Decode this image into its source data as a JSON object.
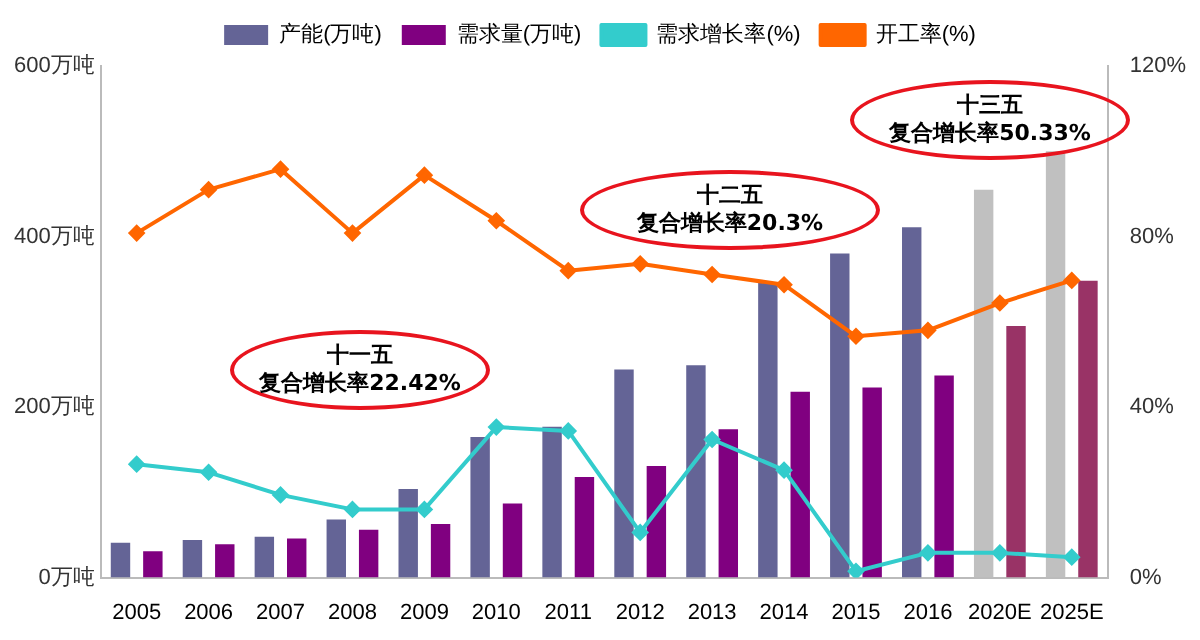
{
  "chart_data": {
    "type": "bar",
    "categories": [
      "2005",
      "2006",
      "2007",
      "2008",
      "2009",
      "2010",
      "2011",
      "2012",
      "2013",
      "2014",
      "2015",
      "2016",
      "2020E",
      "2025E"
    ],
    "series": [
      {
        "name": "产能(万吨)",
        "color": "#646496",
        "colors": [
          "#646496",
          "#646496",
          "#646496",
          "#646496",
          "#646496",
          "#646496",
          "#646496",
          "#646496",
          "#646496",
          "#646496",
          "#646496",
          "#646496",
          "#c0c0c0",
          "#c0c0c0"
        ],
        "values": [
          41,
          44,
          48,
          68,
          104,
          165,
          177,
          244,
          249,
          346,
          380,
          411,
          455,
          500
        ]
      },
      {
        "name": "需求量(万吨)",
        "color": "#800080",
        "colors": [
          "#800080",
          "#800080",
          "#800080",
          "#800080",
          "#800080",
          "#800080",
          "#800080",
          "#800080",
          "#800080",
          "#800080",
          "#800080",
          "#800080",
          "#993366",
          "#993366"
        ],
        "values": [
          31,
          39,
          46,
          56,
          63,
          87,
          118,
          131,
          174,
          218,
          223,
          237,
          295,
          348
        ]
      },
      {
        "name": "需求增长率(%)",
        "type": "line",
        "axis": "y2",
        "color": "#33cccc",
        "values": [
          26.6,
          24.7,
          19.4,
          16,
          16,
          35.3,
          34.4,
          10.6,
          32.4,
          25.2,
          1.5,
          5.8,
          5.8,
          4.8
        ]
      },
      {
        "name": "开工率(%)",
        "type": "line",
        "axis": "y2",
        "color": "#ff6600",
        "values": [
          80.8,
          91,
          95.8,
          80.8,
          94.4,
          83.7,
          72,
          73.6,
          71.1,
          68.7,
          56.6,
          58,
          64.4,
          69.7
        ]
      }
    ],
    "ylim": [
      0,
      600
    ],
    "yticks": [
      {
        "value": 0,
        "label": "0万吨"
      },
      {
        "value": 200,
        "label": "200万吨"
      },
      {
        "value": 400,
        "label": "400万吨"
      },
      {
        "value": 600,
        "label": "600万吨"
      }
    ],
    "y2lim": [
      0,
      120
    ],
    "y2ticks": [
      {
        "value": 0,
        "label": "0%"
      },
      {
        "value": 40,
        "label": "40%"
      },
      {
        "value": 80,
        "label": "80%"
      },
      {
        "value": 120,
        "label": "120%"
      }
    ],
    "annotations": [
      "十一五",
      "复合增长率22.42%",
      "十二五",
      "复合增长率20.3%",
      "十三五",
      "复合增长率50.33%"
    ],
    "legend": "top",
    "marker": "diamond",
    "grid": false
  }
}
